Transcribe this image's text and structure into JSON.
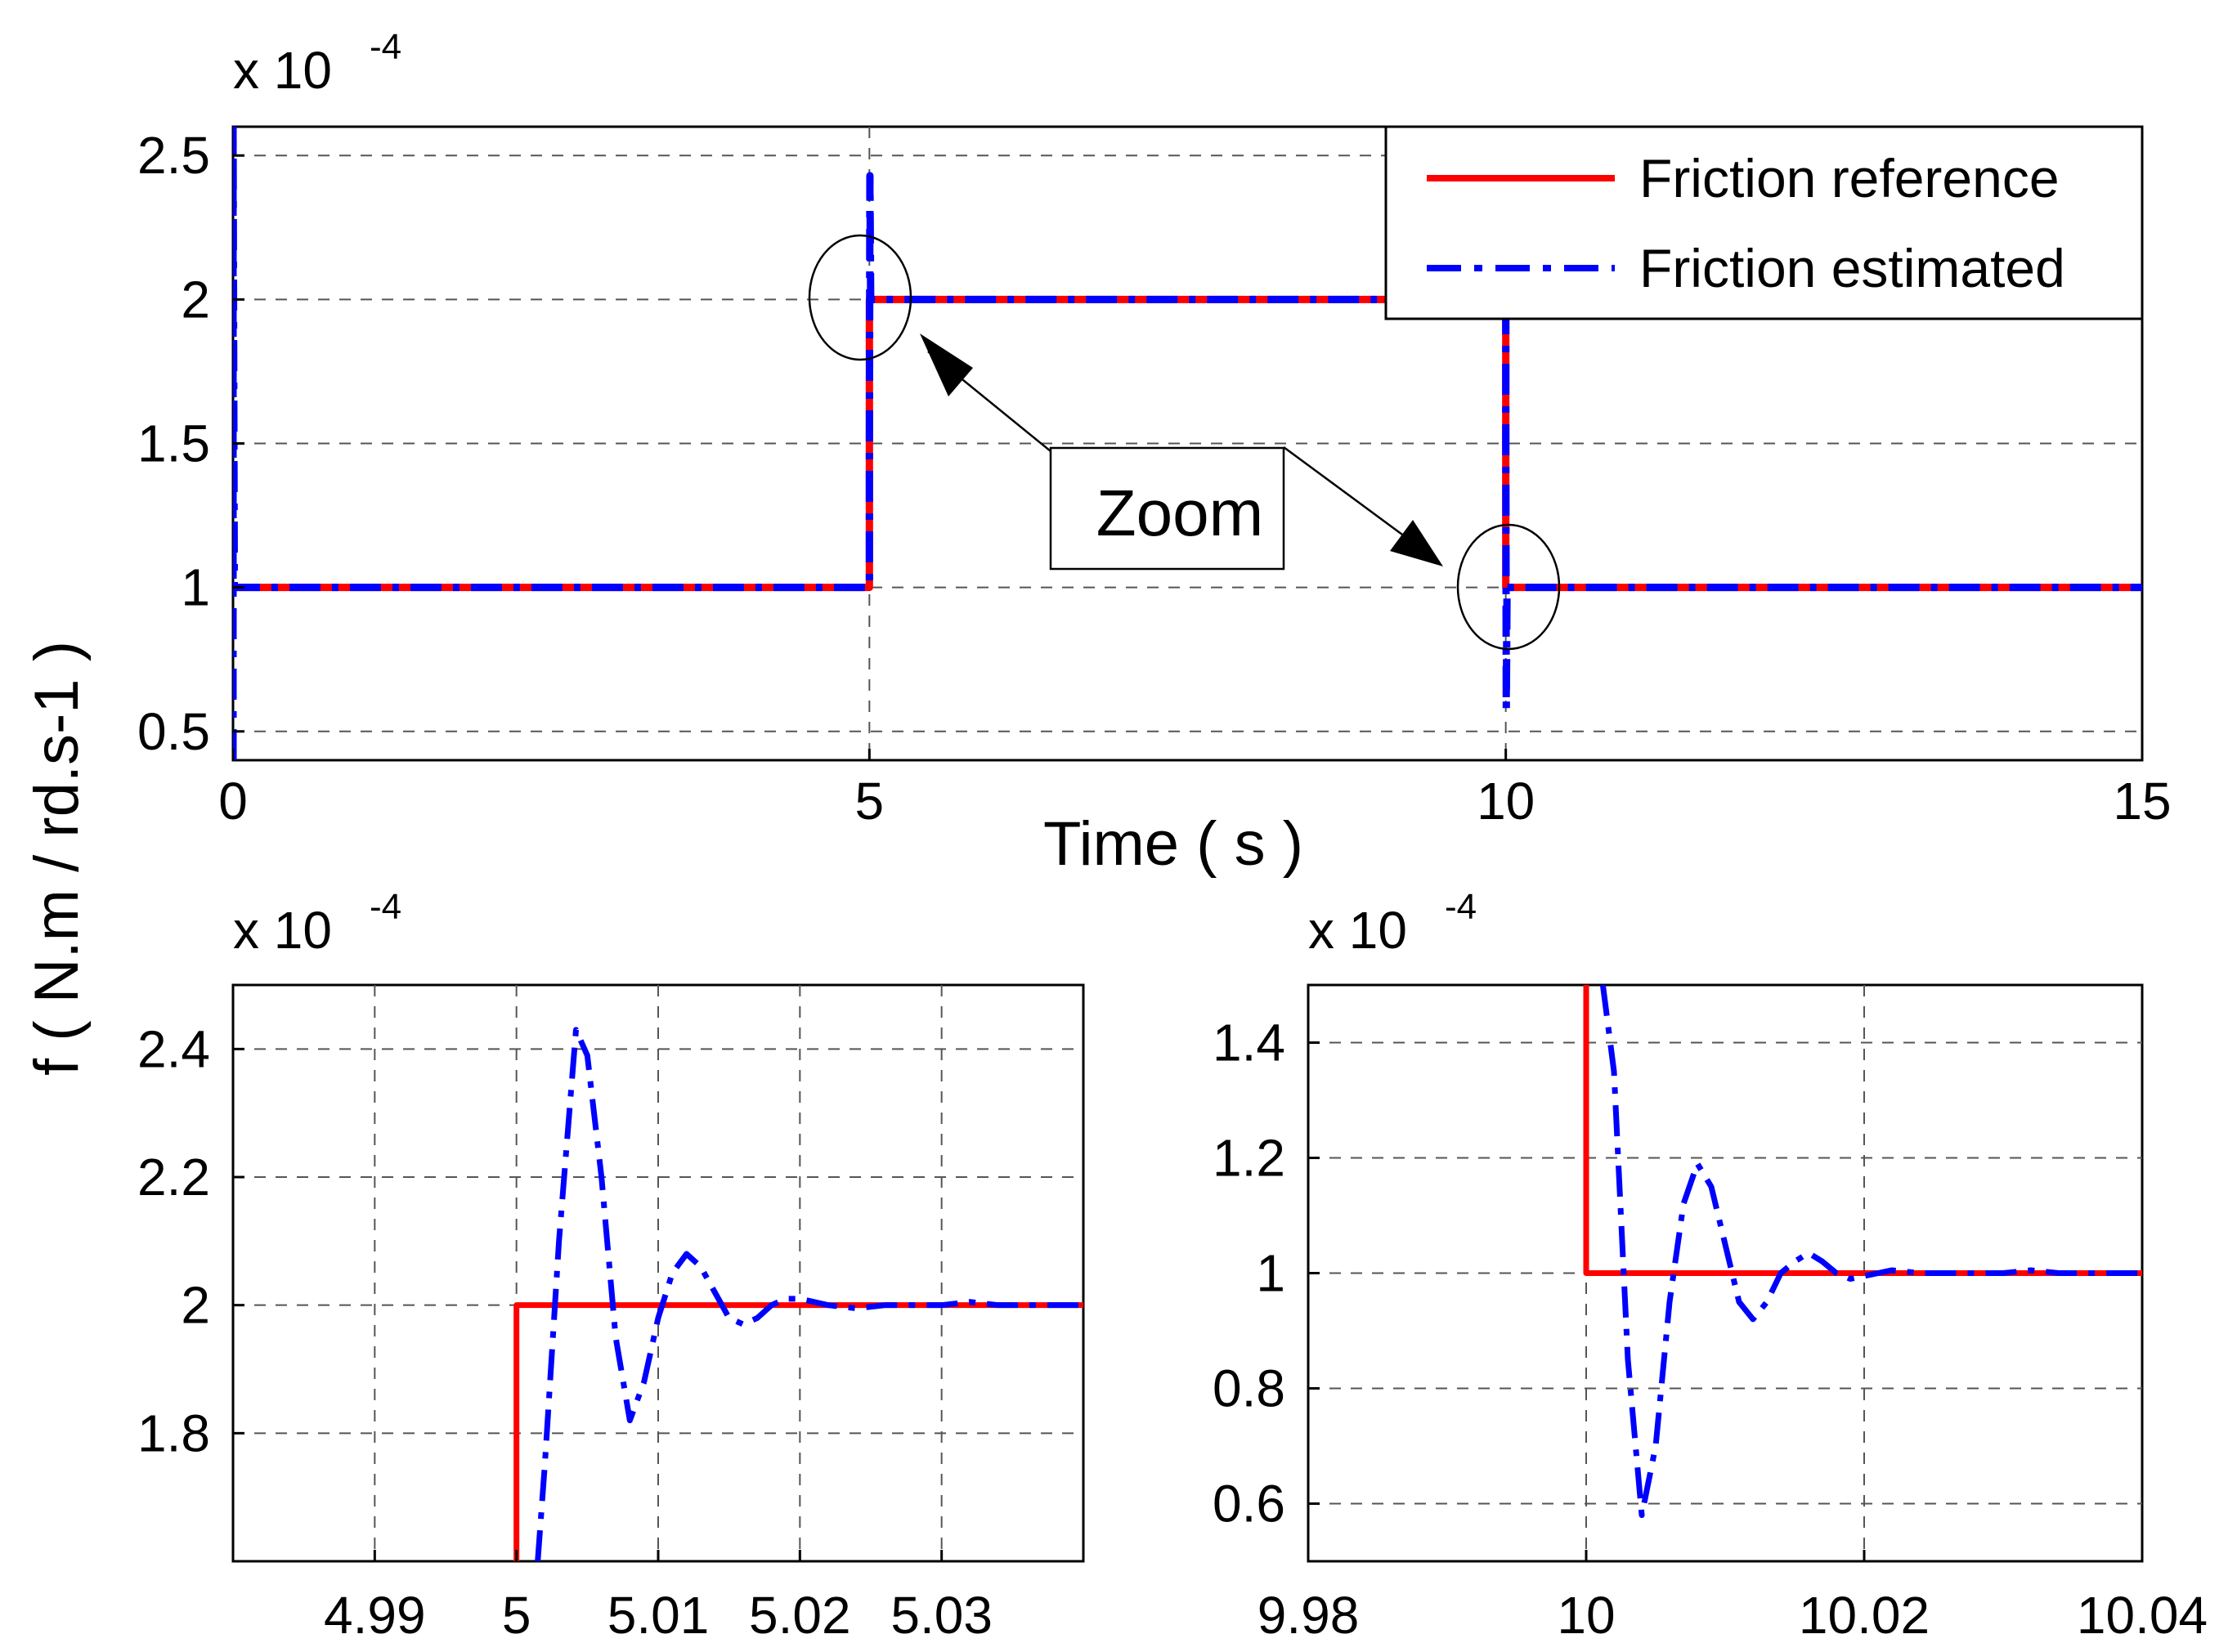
{
  "colors": {
    "reference": "#ff0000",
    "estimated": "#0000ff",
    "grid": "#555555",
    "axes": "#000000",
    "background": "#ffffff"
  },
  "chart_data": [
    {
      "id": "main",
      "type": "line",
      "xlabel": "Time ( s )",
      "ylabel": "f ( N.m / rd.s-1 )",
      "y_scale_label": "x 10",
      "y_scale_exponent": "-4",
      "xlim": [
        0,
        15
      ],
      "ylim": [
        0.4,
        2.6
      ],
      "xticks": [
        0,
        5,
        10,
        15
      ],
      "xtick_labels": [
        "0",
        "5",
        "10",
        "15"
      ],
      "yticks": [
        0.5,
        1,
        1.5,
        2,
        2.5
      ],
      "ytick_labels": [
        "0.5",
        "1",
        "1.5",
        "2",
        "2.5"
      ],
      "grid": true,
      "legend": {
        "placement": "top-right",
        "entries": [
          {
            "label": "Friction reference",
            "series": "reference"
          },
          {
            "label": "Friction estimated",
            "series": "estimated"
          }
        ]
      },
      "annotation": {
        "text": "Zoom",
        "ellipse_centers": [
          [
            5,
            2
          ],
          [
            10,
            1
          ]
        ],
        "arrow_targets": [
          [
            5.1,
            1.9
          ],
          [
            9.9,
            1
          ]
        ]
      },
      "series": [
        {
          "name": "Friction reference",
          "key": "reference",
          "style": "solid",
          "x": [
            0,
            5,
            5,
            10,
            10,
            15
          ],
          "y": [
            1,
            1,
            2,
            2,
            1,
            1
          ]
        },
        {
          "name": "Friction estimated",
          "key": "estimated",
          "style": "dashdot",
          "x": [
            0,
            0,
            0.01,
            5,
            5,
            5.004,
            5.01,
            10,
            10,
            10.004,
            10.01,
            15
          ],
          "y": [
            0.4,
            2.6,
            1,
            1,
            1.5,
            2.43,
            2,
            2,
            1.5,
            0.58,
            1,
            1
          ]
        }
      ]
    },
    {
      "id": "zoom-5",
      "type": "line",
      "y_scale_label": "x 10",
      "y_scale_exponent": "-4",
      "xlim": [
        4.98,
        5.04
      ],
      "ylim": [
        1.6,
        2.5
      ],
      "xticks": [
        4.99,
        5,
        5.01,
        5.02,
        5.03
      ],
      "xtick_labels": [
        "4.99",
        "5",
        "5.01",
        "5.02",
        "5.03"
      ],
      "yticks": [
        1.8,
        2,
        2.2,
        2.4
      ],
      "ytick_labels": [
        "1.8",
        "2",
        "2.2",
        "2.4"
      ],
      "grid": true,
      "series": [
        {
          "name": "Friction reference",
          "key": "reference",
          "style": "solid",
          "x": [
            5,
            5,
            5.04
          ],
          "y": [
            1.6,
            2,
            2
          ]
        },
        {
          "name": "Friction estimated",
          "key": "estimated",
          "style": "dashdot",
          "x": [
            5.0015,
            5.002,
            5.003,
            5.0042,
            5.005,
            5.006,
            5.007,
            5.008,
            5.009,
            5.01,
            5.011,
            5.012,
            5.013,
            5.014,
            5.015,
            5.016,
            5.017,
            5.018,
            5.019,
            5.02,
            5.021,
            5.022,
            5.024,
            5.026,
            5.028,
            5.03,
            5.032,
            5.034,
            5.036,
            5.038,
            5.04
          ],
          "y": [
            1.6,
            1.75,
            2.1,
            2.43,
            2.39,
            2.2,
            1.95,
            1.82,
            1.88,
            1.98,
            2.05,
            2.08,
            2.06,
            2.02,
            1.98,
            1.97,
            1.98,
            2.0,
            2.01,
            2.01,
            2.005,
            2.0,
            1.995,
            2.0,
            2.0,
            2.0,
            2.005,
            2.0,
            2.0,
            2.0,
            2.0
          ]
        }
      ]
    },
    {
      "id": "zoom-10",
      "type": "line",
      "y_scale_label": "x 10",
      "y_scale_exponent": "-4",
      "xlim": [
        9.98,
        10.04
      ],
      "ylim": [
        0.5,
        1.5
      ],
      "xticks": [
        9.98,
        10,
        10.02,
        10.04
      ],
      "xtick_labels": [
        "9.98",
        "10",
        "10.02",
        "10.04"
      ],
      "yticks": [
        0.6,
        0.8,
        1,
        1.2,
        1.4
      ],
      "ytick_labels": [
        "0.6",
        "0.8",
        "1",
        "1.2",
        "1.4"
      ],
      "grid": true,
      "series": [
        {
          "name": "Friction reference",
          "key": "reference",
          "style": "solid",
          "x": [
            10,
            10,
            10.04
          ],
          "y": [
            1.5,
            1,
            1
          ]
        },
        {
          "name": "Friction estimated",
          "key": "estimated",
          "style": "dashdot",
          "x": [
            10.0012,
            10.002,
            10.003,
            10.004,
            10.005,
            10.006,
            10.007,
            10.008,
            10.009,
            10.01,
            10.011,
            10.012,
            10.013,
            10.014,
            10.015,
            10.016,
            10.017,
            10.018,
            10.019,
            10.02,
            10.021,
            10.022,
            10.024,
            10.026,
            10.028,
            10.03,
            10.032,
            10.034,
            10.036,
            10.038,
            10.04
          ],
          "y": [
            1.5,
            1.35,
            0.85,
            0.58,
            0.7,
            0.95,
            1.12,
            1.19,
            1.15,
            1.05,
            0.95,
            0.92,
            0.95,
            1.0,
            1.02,
            1.035,
            1.02,
            1.0,
            0.99,
            0.995,
            1.0,
            1.005,
            1.0,
            1.0,
            1.0,
            1.0,
            1.005,
            1.0,
            1.0,
            1.0,
            1.0
          ]
        }
      ]
    }
  ]
}
